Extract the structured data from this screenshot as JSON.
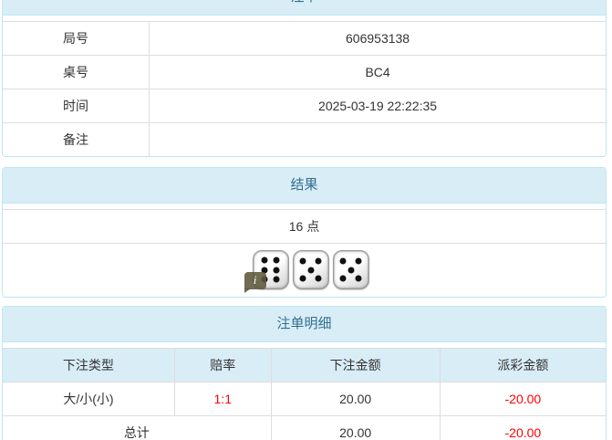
{
  "colors": {
    "panel_border": "#bce8f1",
    "panel_heading_bg": "#d9edf7",
    "panel_heading_text": "#31708f",
    "grid_line": "#dddddd",
    "body_text": "#333333",
    "negative_value": "#ff0000"
  },
  "panels": {
    "bet_slip": {
      "title": "注单",
      "rows": [
        {
          "label": "局号",
          "value": "606953138"
        },
        {
          "label": "桌号",
          "value": "BC4"
        },
        {
          "label": "时间",
          "value": "2025-03-19 22:22:35"
        },
        {
          "label": "备注",
          "value": ""
        }
      ]
    },
    "result": {
      "title": "结果",
      "points_text": "16 点",
      "dice": [
        6,
        5,
        5
      ],
      "info_icon_glyph": "i"
    },
    "detail": {
      "title": "注单明细",
      "columns": [
        "下注类型",
        "赔率",
        "下注金额",
        "派彩金额"
      ],
      "rows": [
        {
          "bet_type": "大/小(小)",
          "odds": "1:1",
          "bet_amount": "20.00",
          "payout": "-20.00"
        }
      ],
      "total": {
        "label": "总计",
        "bet_amount": "20.00",
        "payout": "-20.00"
      }
    }
  }
}
